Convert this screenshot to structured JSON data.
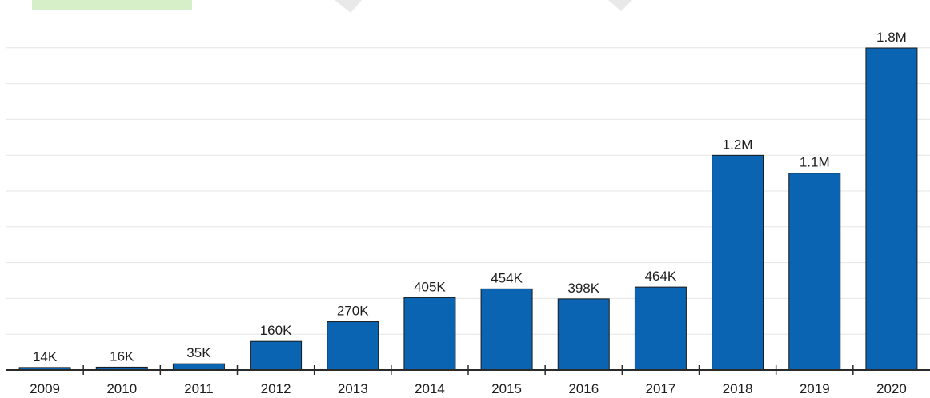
{
  "chart_data": {
    "type": "bar",
    "categories": [
      "2009",
      "2010",
      "2011",
      "2012",
      "2013",
      "2014",
      "2015",
      "2016",
      "2017",
      "2018",
      "2019",
      "2020"
    ],
    "values": [
      14000,
      16000,
      35000,
      160000,
      270000,
      405000,
      454000,
      398000,
      464000,
      1200000,
      1100000,
      1800000
    ],
    "data_labels": [
      "14K",
      "16K",
      "35K",
      "160K",
      "270K",
      "405K",
      "454K",
      "398K",
      "464K",
      "1.2M",
      "1.1M",
      "1.8M"
    ],
    "ylim": [
      0,
      1800000
    ],
    "grid": true,
    "colors": {
      "bar": "#0a64b1",
      "grid": "#e6e6e6",
      "axis": "#2a2a2a"
    }
  }
}
